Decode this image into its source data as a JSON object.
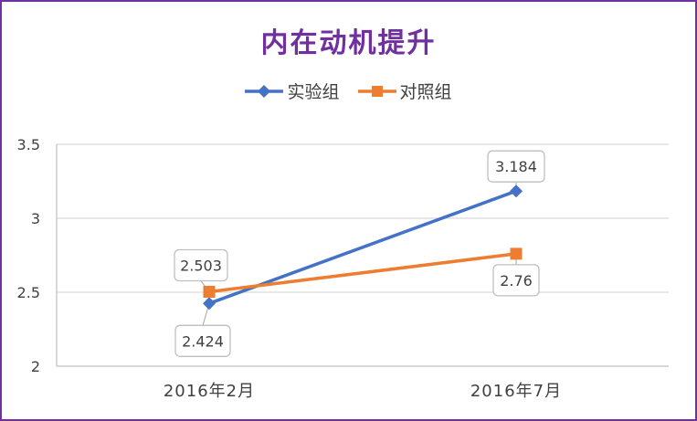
{
  "chart_data": {
    "type": "line",
    "title": "内在动机提升",
    "categories": [
      "2016年2月",
      "2016年7月"
    ],
    "series": [
      {
        "name": "实验组",
        "values": [
          2.424,
          3.184
        ],
        "color": "#4472c4",
        "marker": "diamond",
        "labels": [
          "2.424",
          "3.184"
        ]
      },
      {
        "name": "对照组",
        "values": [
          2.503,
          2.76
        ],
        "color": "#ed7d31",
        "marker": "square",
        "labels": [
          "2.503",
          "2.76"
        ]
      }
    ],
    "ylim": [
      2,
      3.5
    ],
    "yticks": [
      2,
      2.5,
      3,
      3.5
    ],
    "ytick_labels": [
      "2",
      "2.5",
      "3",
      "3.5"
    ],
    "grid": true,
    "legend": "top",
    "title_color": "#7030a0",
    "frame_color": "#7030a0"
  }
}
